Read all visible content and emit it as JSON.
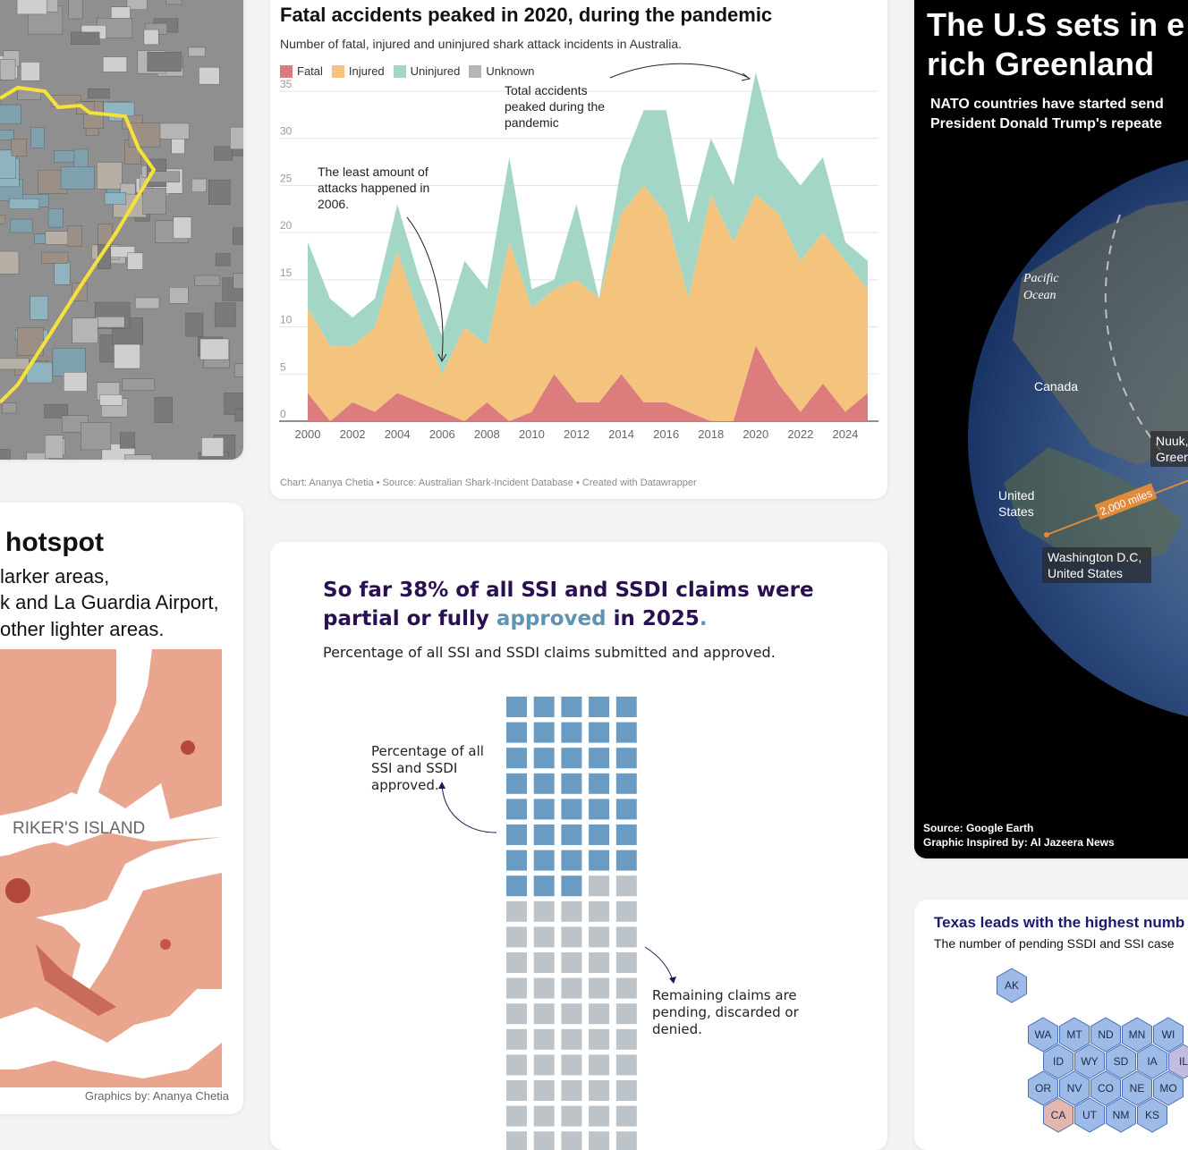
{
  "aerial": {},
  "shark": {
    "title": "Fatal accidents peaked in 2020, during the pandemic",
    "subtitle": "Number of fatal, injured and uninjured shark attack incidents in Australia.",
    "legend": [
      {
        "label": "Fatal",
        "color": "#dc7c7c"
      },
      {
        "label": "Injured",
        "color": "#f4c47f"
      },
      {
        "label": "Uninjured",
        "color": "#a4d6c5"
      },
      {
        "label": "Unknown",
        "color": "#b5b5b5"
      }
    ],
    "annotation_least": "The least amount of attacks happened in 2006.",
    "annotation_peak": "Total accidents peaked during the pandemic",
    "footer": "Chart: Ananya Chetia • Source: Australian Shark-Incident Database  • Created with Datawrapper"
  },
  "chart_data": {
    "type": "area",
    "stacked": true,
    "title": "Fatal accidents peaked in 2020, during the pandemic",
    "subtitle": "Number of fatal, injured and uninjured shark attack incidents in Australia.",
    "x": [
      2000,
      2001,
      2002,
      2003,
      2004,
      2005,
      2006,
      2007,
      2008,
      2009,
      2010,
      2011,
      2012,
      2013,
      2014,
      2015,
      2016,
      2017,
      2018,
      2019,
      2020,
      2021,
      2022,
      2023,
      2024,
      2025
    ],
    "x_ticks": [
      "2000",
      "2002",
      "2004",
      "2006",
      "2008",
      "2010",
      "2012",
      "2014",
      "2016",
      "2018",
      "2020",
      "2022",
      "2024"
    ],
    "y_ticks": [
      "0",
      "5",
      "10",
      "15",
      "20",
      "25",
      "30",
      "35"
    ],
    "ylim": [
      0,
      35
    ],
    "grid": true,
    "legend_position": "top-left",
    "series": [
      {
        "name": "Fatal",
        "color": "#dc7c7c",
        "values": [
          3,
          0,
          2,
          1,
          3,
          2,
          1,
          0,
          2,
          0,
          1,
          5,
          2,
          2,
          5,
          2,
          2,
          1,
          0,
          0,
          8,
          4,
          1,
          4,
          1,
          3
        ]
      },
      {
        "name": "Injured",
        "color": "#f4c47f",
        "values": [
          9,
          8,
          6,
          9,
          15,
          9,
          4,
          10,
          6,
          19,
          11,
          9,
          13,
          11,
          17,
          23,
          20,
          12,
          24,
          19,
          16,
          18,
          16,
          16,
          16,
          11
        ]
      },
      {
        "name": "Uninjured",
        "color": "#a4d6c5",
        "values": [
          7,
          5,
          3,
          3,
          5,
          4,
          4,
          7,
          6,
          9,
          2,
          1,
          8,
          0,
          5,
          8,
          11,
          8,
          6,
          6,
          13,
          6,
          8,
          8,
          2,
          3
        ]
      },
      {
        "name": "Unknown",
        "color": "#b5b5b5",
        "values": [
          0,
          0,
          0,
          0,
          0,
          0,
          0,
          0,
          0,
          0,
          0,
          0,
          0,
          0,
          0,
          0,
          0,
          0,
          0,
          0,
          0,
          0,
          0,
          0,
          0,
          0
        ]
      }
    ]
  },
  "map": {
    "title": "hotspot",
    "line1": "larker areas,",
    "line2": "k and La Guardia Airport,",
    "line3": " other lighter areas.",
    "label": "RIKER'S ISLAND",
    "credit": "Graphics by: Ananya Chetia"
  },
  "waffle": {
    "title_part1": "So far 38% of all SSI and SSDI claims were partial or fully ",
    "title_accent": "approved",
    "title_part2": " in 2025",
    "title_end": ".",
    "subtitle": "Percentage of all SSI and SSDI claims submitted and approved.",
    "annotation_approved": "Percentage of all SSI and SSDI approved.",
    "annotation_remaining": "Remaining claims are pending, discarded or denied.",
    "approved_percent": 38,
    "approved_color": "#6a9cc3",
    "other_color": "#bcc3c9"
  },
  "globe": {
    "title_line1": "The U.S sets in e",
    "title_line2": "rich Greenland",
    "subtitle_line1": "NATO countries have started send",
    "subtitle_line2": "President Donald Trump's repeate",
    "label_pacific": "Pacific Ocean",
    "label_canada": "Canada",
    "label_us": "United States",
    "label_nuuk": "Nuuk, Green",
    "label_dc": "Washington D.C, United States",
    "label_distance": "2,000 miles",
    "source": "Source: Google Earth",
    "inspired": "Graphic Inspired by: Al Jazeera News"
  },
  "hex": {
    "title": "Texas leads with the highest numb",
    "subtitle": "The number of pending SSDI and SSI case",
    "states": [
      "AK",
      "WA",
      "MT",
      "ND",
      "MN",
      "WI",
      "ID",
      "WY",
      "SD",
      "IA",
      "IL",
      "OR",
      "NV",
      "CO",
      "NE",
      "MO",
      "CA",
      "UT",
      "NM",
      "KS"
    ]
  }
}
